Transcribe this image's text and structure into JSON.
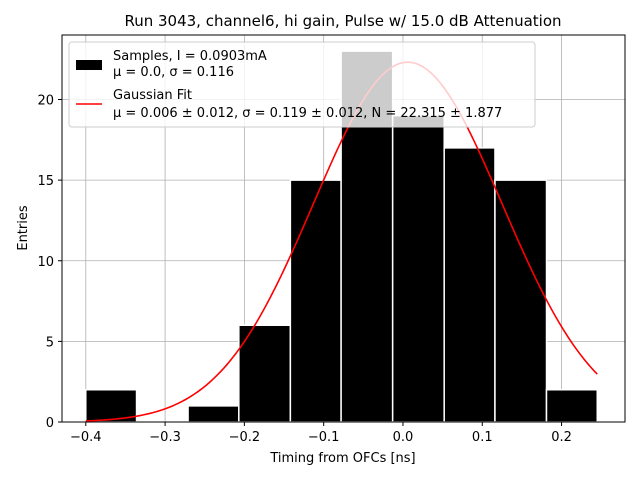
{
  "chart_data": {
    "type": "bar",
    "title": "Run 3043, channel6, hi gain, Pulse w/ 15.0 dB Attenuation",
    "xlabel": "Timing from OFCs [ns]",
    "ylabel": "Entries",
    "xlim": [
      -0.43,
      0.28
    ],
    "ylim": [
      0,
      24
    ],
    "xticks": [
      -0.4,
      -0.3,
      -0.2,
      -0.1,
      0.0,
      0.1,
      0.2
    ],
    "xtick_labels": [
      "−0.4",
      "−0.3",
      "−0.2",
      "−0.1",
      "0.0",
      "0.1",
      "0.2"
    ],
    "yticks": [
      0,
      5,
      10,
      15,
      20
    ],
    "yticks_labels": [
      "0",
      "5",
      "10",
      "15",
      "20"
    ],
    "grid": true,
    "legend_position": "top-left",
    "bins": [
      {
        "x0": -0.4,
        "x1": -0.336,
        "count": 2
      },
      {
        "x0": -0.336,
        "x1": -0.271,
        "count": 0
      },
      {
        "x0": -0.271,
        "x1": -0.207,
        "count": 1
      },
      {
        "x0": -0.207,
        "x1": -0.142,
        "count": 6
      },
      {
        "x0": -0.142,
        "x1": -0.078,
        "count": 15
      },
      {
        "x0": -0.078,
        "x1": -0.013,
        "count": 23
      },
      {
        "x0": -0.013,
        "x1": 0.052,
        "count": 19
      },
      {
        "x0": 0.052,
        "x1": 0.116,
        "count": 17
      },
      {
        "x0": 0.116,
        "x1": 0.181,
        "count": 15
      },
      {
        "x0": 0.181,
        "x1": 0.245,
        "count": 2
      }
    ],
    "fit": {
      "mu": 0.006,
      "sigma": 0.119,
      "N": 22.315,
      "x_range": [
        -0.4,
        0.245
      ],
      "color": "#ff0000"
    },
    "bar_color": "#000000",
    "bar_edge_color": "#ffffff",
    "legend": [
      {
        "line1": "Samples, I = 0.0903mA",
        "line2": "μ = 0.0, σ = 0.116",
        "marker": "bar"
      },
      {
        "line1": "Gaussian Fit",
        "line2": "μ = 0.006 ± 0.012, σ = 0.119 ± 0.012, N = 22.315 ± 1.877",
        "marker": "line"
      }
    ]
  }
}
